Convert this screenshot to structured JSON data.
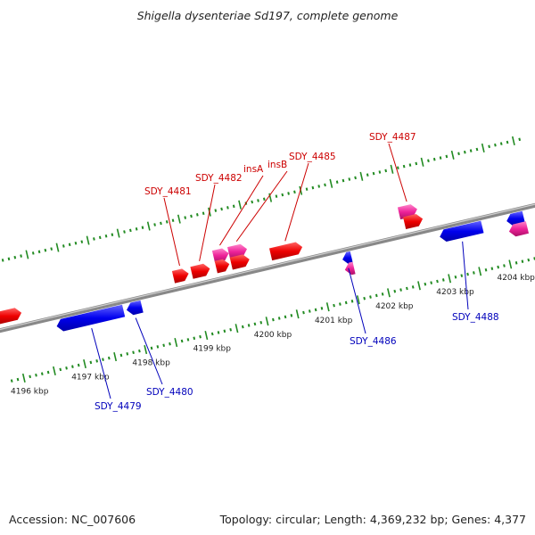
{
  "title": "Shigella dysenteriae Sd197, complete genome",
  "footer": {
    "accession": "Accession: NC_007606",
    "summary": "Topology: circular; Length: 4,369,232 bp; Genes: 4,377"
  },
  "colors": {
    "forward_gene": "#ee0000",
    "forward_mobile": "#ee2299",
    "reverse_gene": "#0000ee",
    "reverse_mobile": "#ee2299",
    "backbone": "#888888",
    "tick": "#228b22",
    "label_forward": "#cc0000",
    "label_reverse": "#0000bb"
  },
  "scale": {
    "unit": "kbp",
    "start_kbp": 4195.8,
    "end_kbp": 4204.6,
    "tick_labels": [
      "4196 kbp",
      "4197 kbp",
      "4198 kbp",
      "4199 kbp",
      "4200 kbp",
      "4201 kbp",
      "4202 kbp",
      "4203 kbp",
      "4204 kbp"
    ],
    "tick_values_kbp": [
      4196,
      4197,
      4198,
      4199,
      4200,
      4201,
      4202,
      4203,
      4204
    ]
  },
  "genes": [
    {
      "id": "g-left-red",
      "strand": "+",
      "type": "gene",
      "start_kbp": 4195.8,
      "end_kbp": 4196.2
    },
    {
      "id": "g-4479",
      "label": "SDY_4479",
      "strand": "-",
      "type": "gene",
      "start_kbp": 4196.7,
      "end_kbp": 4197.8
    },
    {
      "id": "g-4480",
      "label": "SDY_4480",
      "strand": "-",
      "type": "gene",
      "start_kbp": 4197.85,
      "end_kbp": 4198.1
    },
    {
      "id": "g-4481",
      "label": "SDY_4481",
      "strand": "+",
      "type": "gene",
      "start_kbp": 4198.7,
      "end_kbp": 4198.95
    },
    {
      "id": "g-4482",
      "label": "SDY_4482",
      "strand": "+",
      "type": "gene",
      "start_kbp": 4199.0,
      "end_kbp": 4199.3
    },
    {
      "id": "g-insA",
      "label": "insA",
      "strand": "+",
      "type": "mobile",
      "start_kbp": 4199.4,
      "end_kbp": 4199.65
    },
    {
      "id": "g-insA-cds",
      "strand": "+",
      "type": "gene",
      "start_kbp": 4199.4,
      "end_kbp": 4199.62
    },
    {
      "id": "g-insB",
      "label": "insB",
      "strand": "+",
      "type": "mobile",
      "start_kbp": 4199.65,
      "end_kbp": 4199.95
    },
    {
      "id": "g-insB-cds",
      "strand": "+",
      "type": "gene",
      "start_kbp": 4199.65,
      "end_kbp": 4199.95
    },
    {
      "id": "g-4485",
      "label": "SDY_4485",
      "strand": "+",
      "type": "gene",
      "start_kbp": 4200.3,
      "end_kbp": 4200.82
    },
    {
      "id": "g-4486",
      "label": "SDY_4486",
      "strand": "-",
      "type": "gene",
      "start_kbp": 4201.4,
      "end_kbp": 4201.55
    },
    {
      "id": "g-4486-mob",
      "strand": "-",
      "type": "mobile",
      "start_kbp": 4201.4,
      "end_kbp": 4201.55
    },
    {
      "id": "g-4487",
      "label": "SDY_4487",
      "strand": "+",
      "type": "mobile",
      "start_kbp": 4202.45,
      "end_kbp": 4202.75
    },
    {
      "id": "g-4487-cds",
      "strand": "+",
      "type": "gene",
      "start_kbp": 4202.5,
      "end_kbp": 4202.8
    },
    {
      "id": "g-4488",
      "label": "SDY_4488",
      "strand": "-",
      "type": "gene",
      "start_kbp": 4203.0,
      "end_kbp": 4203.7
    },
    {
      "id": "g-right-blue",
      "strand": "-",
      "type": "gene",
      "start_kbp": 4204.1,
      "end_kbp": 4204.38
    },
    {
      "id": "g-right-pink",
      "strand": "-",
      "type": "mobile",
      "start_kbp": 4204.1,
      "end_kbp": 4204.4
    }
  ]
}
